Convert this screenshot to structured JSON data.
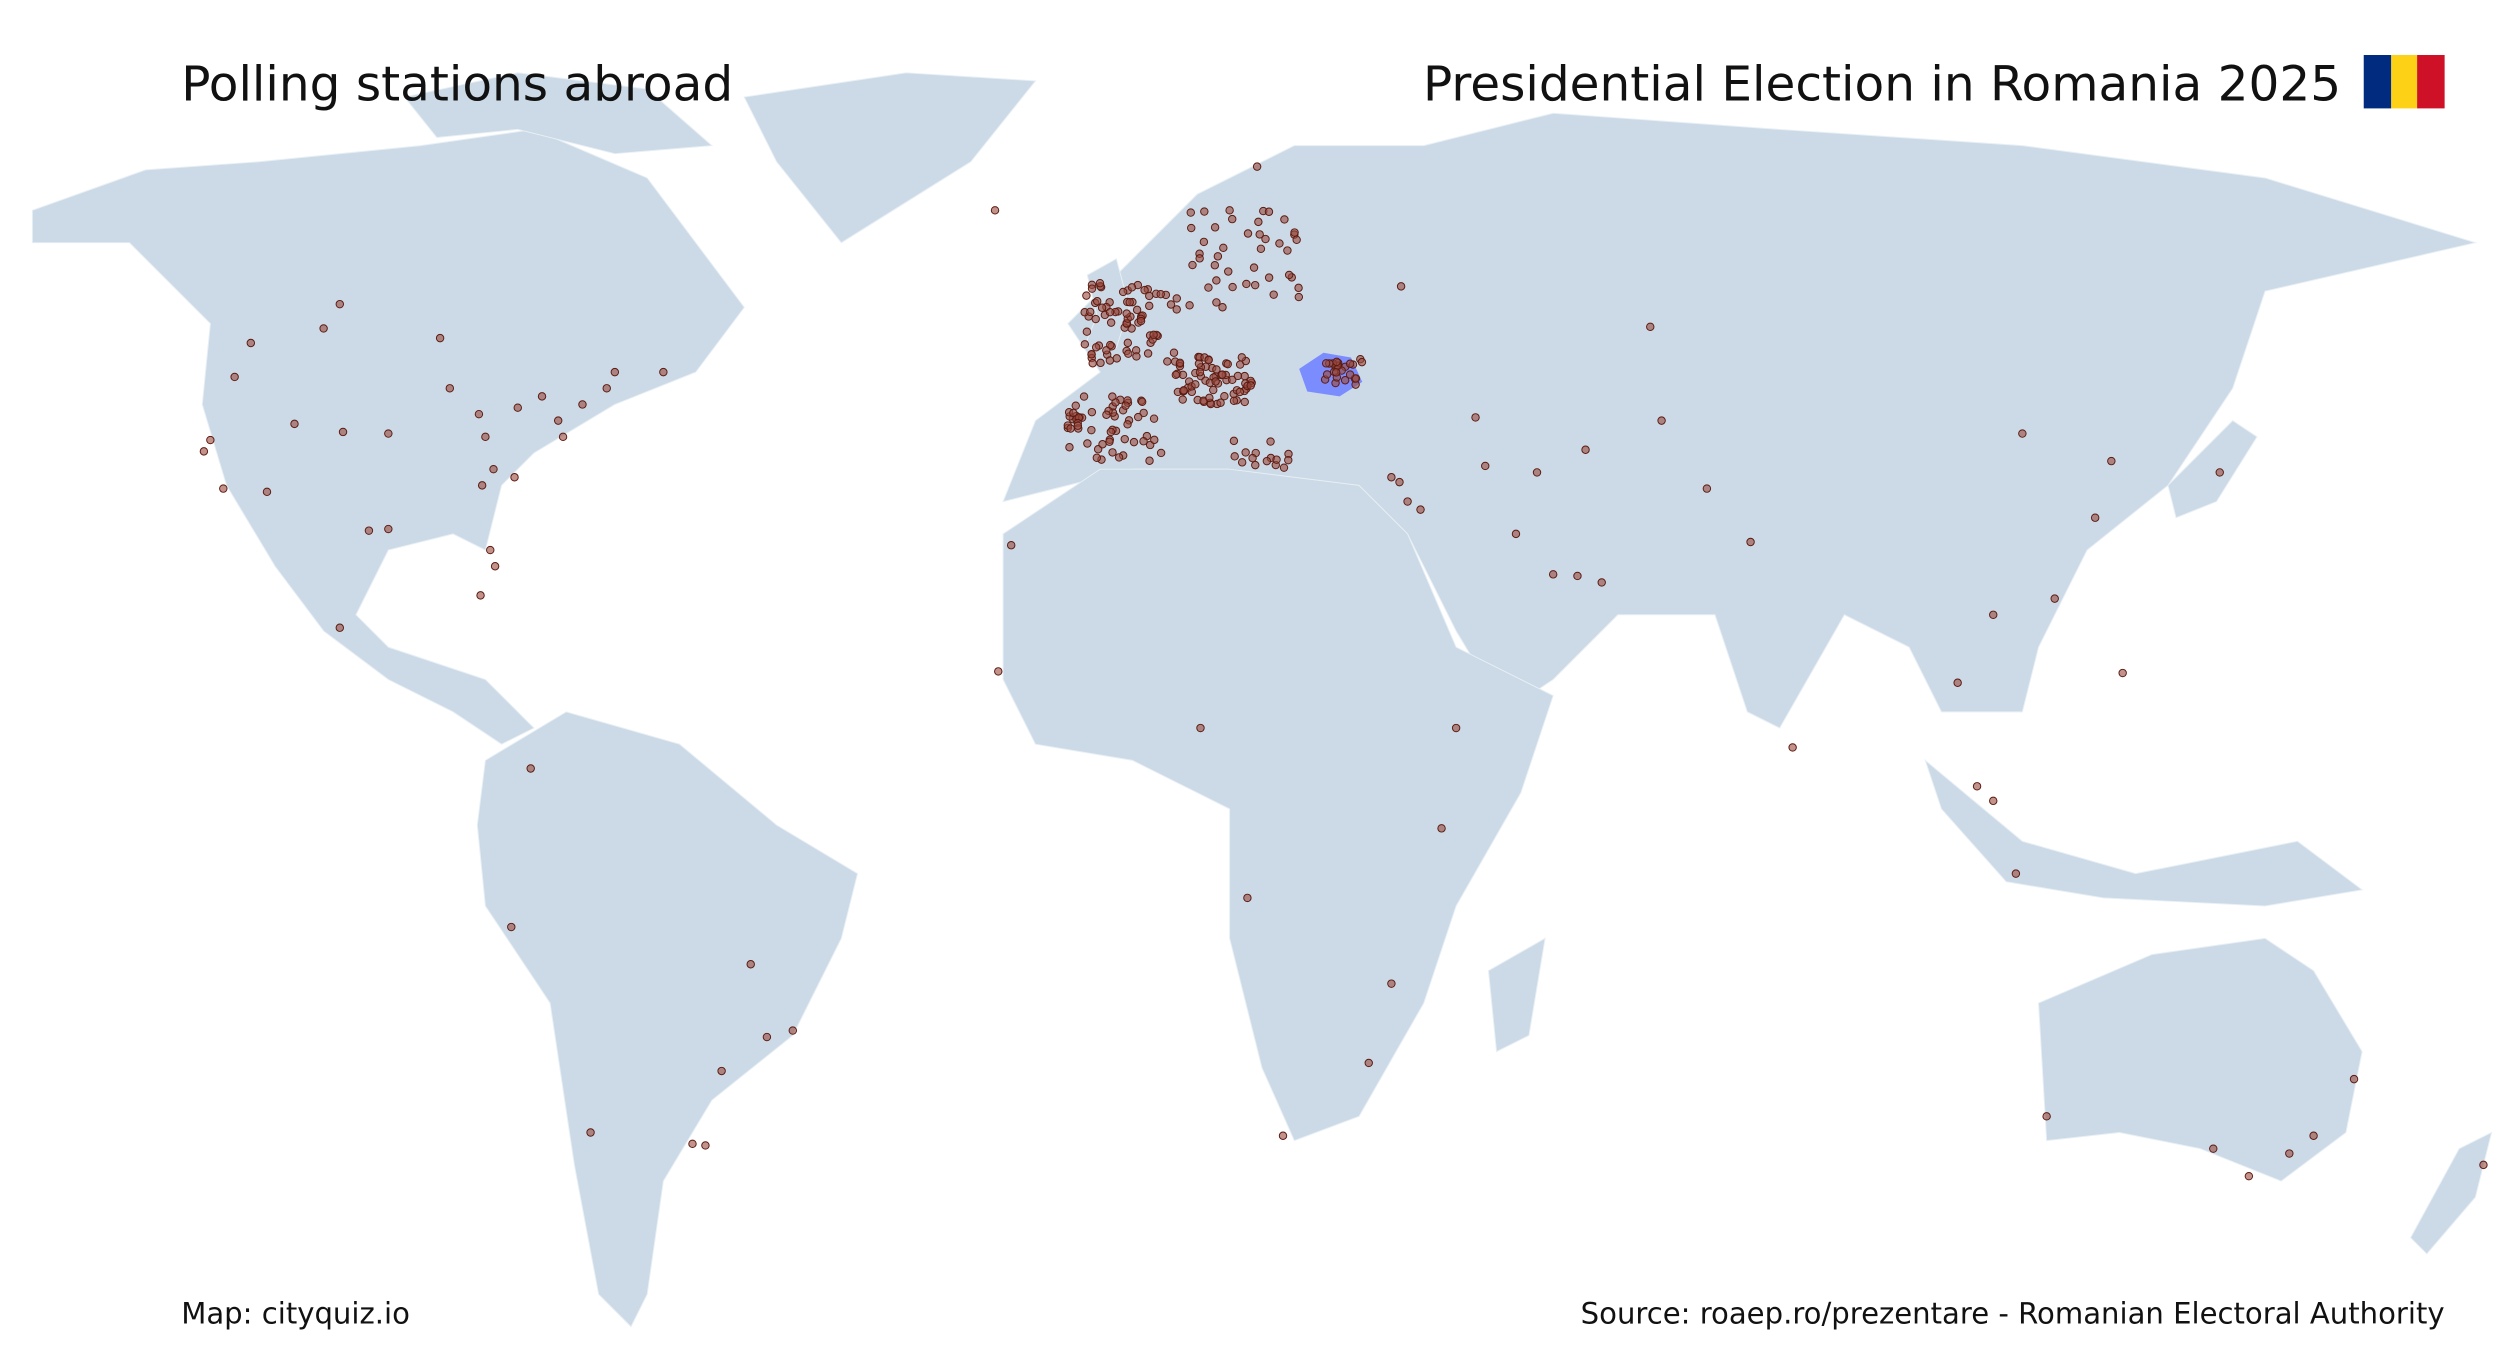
{
  "header": {
    "left_title": "Polling stations abroad",
    "right_title": "Presidential Election in Romania 2025"
  },
  "footer": {
    "credit": "Map: cityquiz.io",
    "source": "Source: roaep.ro/prezentare - Romanian Electoral Authority"
  }
}
